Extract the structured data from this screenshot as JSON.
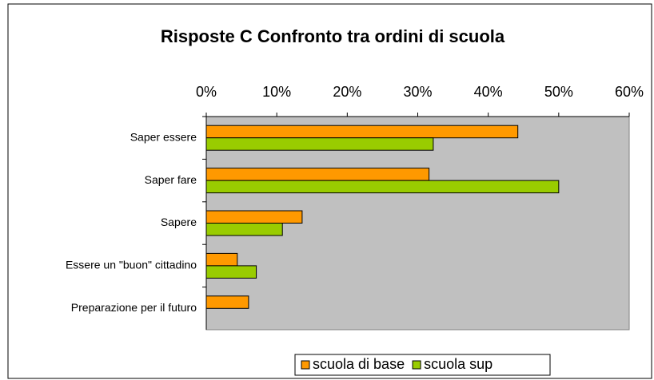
{
  "chart_data": {
    "type": "hbar",
    "title": "Risposte C Confronto tra ordini di scuola",
    "categories": [
      "Saper essere",
      "Saper fare",
      "Sapere",
      "Essere un \"buon\" cittadino",
      "Preparazione per il futuro"
    ],
    "series": [
      {
        "name": "scuola di base",
        "color": "#ff9900",
        "values": [
          44.2,
          31.6,
          13.6,
          4.4,
          6
        ]
      },
      {
        "name": "scuola sup",
        "color": "#99cc00",
        "values": [
          32.2,
          50,
          10.8,
          7.1,
          0
        ]
      }
    ],
    "xlim": [
      0,
      60
    ],
    "xticks": [
      {
        "value": 0,
        "label": "0%"
      },
      {
        "value": 10,
        "label": "10%"
      },
      {
        "value": 20,
        "label": "20%"
      },
      {
        "value": 30,
        "label": "30%"
      },
      {
        "value": 40,
        "label": "40%"
      },
      {
        "value": 50,
        "label": "50%"
      },
      {
        "value": 60,
        "label": "60%"
      }
    ],
    "grid": false,
    "legend": "bottom",
    "plot_background": "#c0c0c0"
  }
}
